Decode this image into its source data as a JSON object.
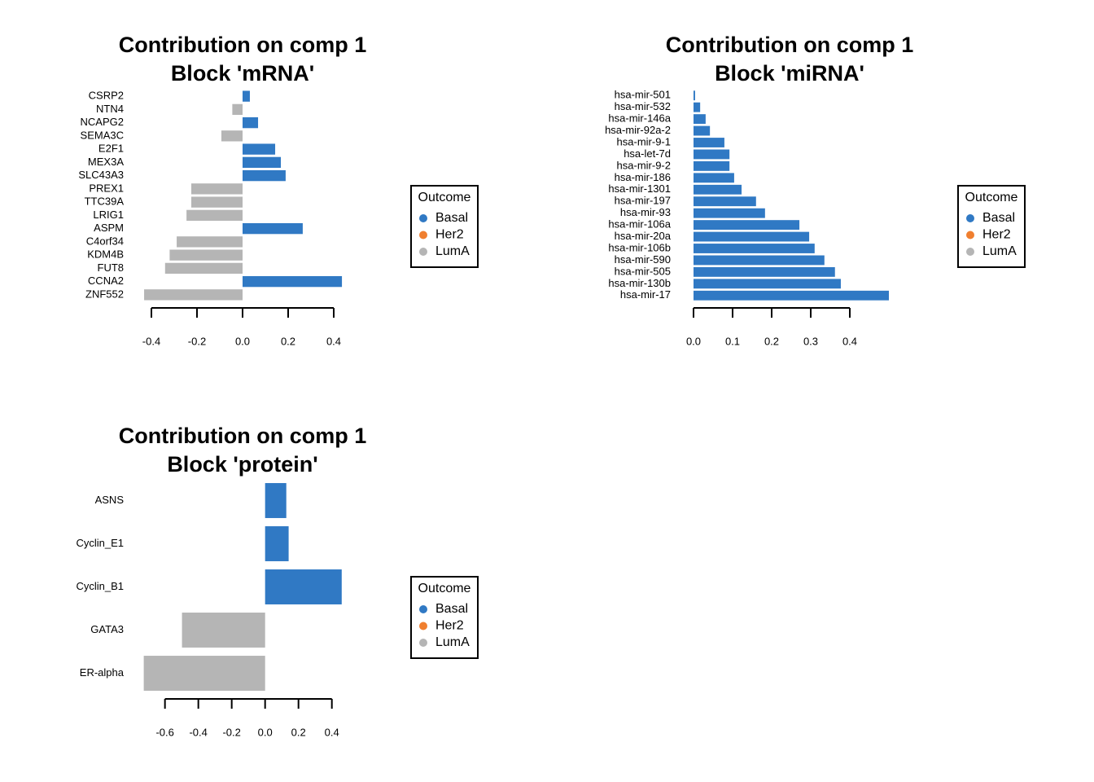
{
  "chart_data": [
    {
      "type": "barh",
      "title": "Contribution on comp 1",
      "subtitle": "Block 'mRNA'",
      "categories": [
        "CSRP2",
        "NTN4",
        "NCAPG2",
        "SEMA3C",
        "E2F1",
        "MEX3A",
        "SLC43A3",
        "PREX1",
        "TTC39A",
        "LRIG1",
        "ASPM",
        "C4orf34",
        "KDM4B",
        "FUT8",
        "CCNA2",
        "ZNF552"
      ],
      "values": [
        0.032,
        -0.045,
        0.068,
        -0.093,
        0.143,
        0.168,
        0.189,
        -0.225,
        -0.225,
        -0.246,
        0.264,
        -0.289,
        -0.32,
        -0.34,
        0.436,
        -0.432
      ],
      "colors": [
        "#3079c4",
        "#b5b5b5",
        "#3079c4",
        "#b5b5b5",
        "#3079c4",
        "#3079c4",
        "#3079c4",
        "#b5b5b5",
        "#b5b5b5",
        "#b5b5b5",
        "#3079c4",
        "#b5b5b5",
        "#b5b5b5",
        "#b5b5b5",
        "#3079c4",
        "#b5b5b5"
      ],
      "xlim": [
        -0.45,
        0.45
      ],
      "xticks": [
        -0.4,
        -0.2,
        {
          "value": 0,
          "label": "0.0"
        },
        0.2,
        0.4
      ],
      "legend": {
        "title": "Outcome",
        "items": [
          {
            "name": "Basal",
            "color": "#3079c4"
          },
          {
            "name": "Her2",
            "color": "#f07f2f"
          },
          {
            "name": "LumA",
            "color": "#b5b5b5"
          }
        ]
      }
    },
    {
      "type": "barh",
      "title": "Contribution on comp 1",
      "subtitle": "Block 'miRNA'",
      "categories": [
        "hsa-mir-501",
        "hsa-mir-532",
        "hsa-mir-146a",
        "hsa-mir-92a-2",
        "hsa-mir-9-1",
        "hsa-let-7d",
        "hsa-mir-9-2",
        "hsa-mir-186",
        "hsa-mir-1301",
        "hsa-mir-197",
        "hsa-mir-93",
        "hsa-mir-106a",
        "hsa-mir-20a",
        "hsa-mir-106b",
        "hsa-mir-590",
        "hsa-mir-505",
        "hsa-mir-130b",
        "hsa-mir-17"
      ],
      "values": [
        0.004,
        0.017,
        0.031,
        0.042,
        0.079,
        0.092,
        0.092,
        0.104,
        0.123,
        0.16,
        0.183,
        0.271,
        0.296,
        0.31,
        0.335,
        0.362,
        0.377,
        0.5
      ],
      "colors": [
        "#3079c4",
        "#3079c4",
        "#3079c4",
        "#3079c4",
        "#3079c4",
        "#3079c4",
        "#3079c4",
        "#3079c4",
        "#3079c4",
        "#3079c4",
        "#3079c4",
        "#3079c4",
        "#3079c4",
        "#3079c4",
        "#3079c4",
        "#3079c4",
        "#3079c4",
        "#3079c4"
      ],
      "xlim": [
        0,
        0.5
      ],
      "xticks": [
        {
          "value": 0,
          "label": "0.0"
        },
        0.1,
        0.2,
        0.3,
        0.4
      ],
      "legend": {
        "title": "Outcome",
        "items": [
          {
            "name": "Basal",
            "color": "#3079c4"
          },
          {
            "name": "Her2",
            "color": "#f07f2f"
          },
          {
            "name": "LumA",
            "color": "#b5b5b5"
          }
        ]
      }
    },
    {
      "type": "barh",
      "title": "Contribution on comp 1",
      "subtitle": "Block 'protein'",
      "categories": [
        "ASNS",
        "Cyclin_E1",
        "Cyclin_B1",
        "GATA3",
        "ER-alpha"
      ],
      "values": [
        0.127,
        0.141,
        0.459,
        -0.498,
        -0.727
      ],
      "colors": [
        "#3079c4",
        "#3079c4",
        "#3079c4",
        "#b5b5b5",
        "#b5b5b5"
      ],
      "xlim": [
        -0.73,
        0.46
      ],
      "xticks": [
        -0.6,
        -0.4,
        -0.2,
        {
          "value": 0,
          "label": "0.0"
        },
        0.2,
        0.4
      ],
      "legend": {
        "title": "Outcome",
        "items": [
          {
            "name": "Basal",
            "color": "#3079c4"
          },
          {
            "name": "Her2",
            "color": "#f07f2f"
          },
          {
            "name": "LumA",
            "color": "#b5b5b5"
          }
        ]
      }
    }
  ]
}
